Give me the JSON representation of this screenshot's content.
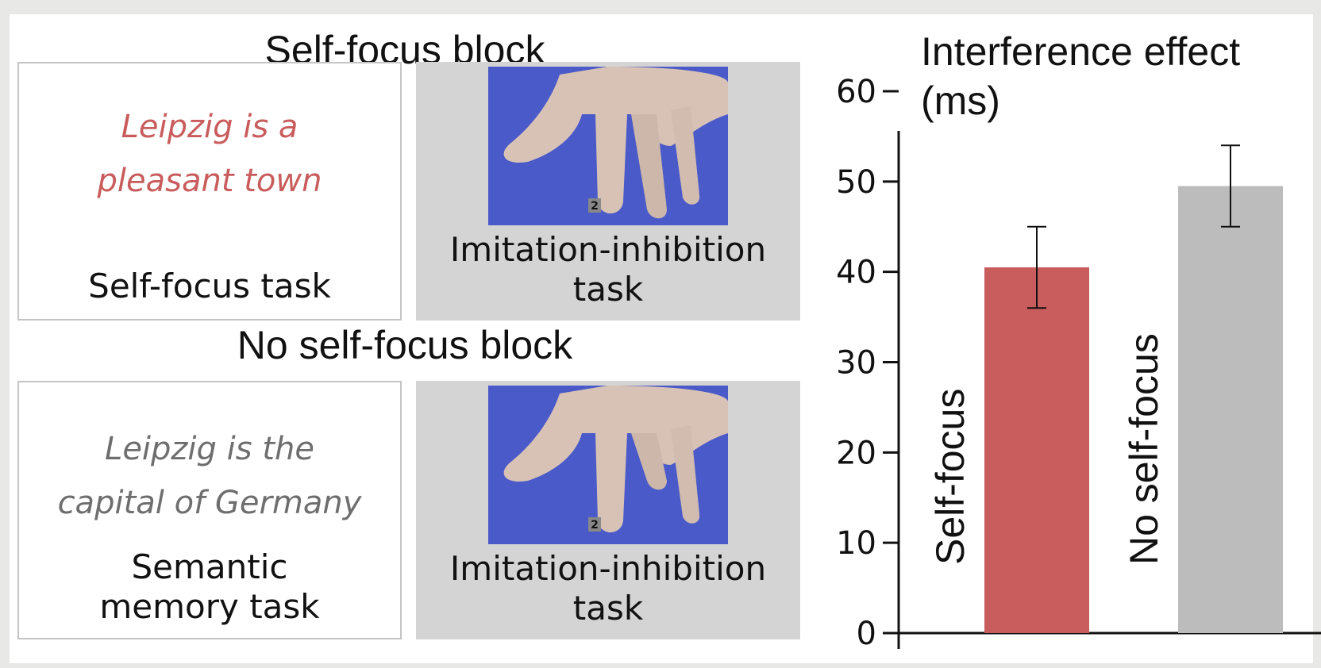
{
  "left_panel": {
    "self_focus_block": {
      "title": "Self-focus block",
      "sentence_line1": "Leipzig is a",
      "sentence_line2": "pleasant town",
      "task_label": "Self-focus task",
      "image_label_line1": "Imitation-inhibition",
      "image_label_line2": "task",
      "finger_number": "2"
    },
    "no_self_focus_block": {
      "title": "No self-focus block",
      "sentence_line1": "Leipzig is the",
      "sentence_line2": "capital of Germany",
      "task_label_line1": "Semantic",
      "task_label_line2": "memory task",
      "image_label_line1": "Imitation-inhibition",
      "image_label_line2": "task",
      "finger_number": "2"
    }
  },
  "colors": {
    "self_focus": "#c95c5c",
    "no_self_focus": "#bcbcbc",
    "sentence_red": "#c95c5c",
    "sentence_grey": "#6e6e6e",
    "photo_blue": "#4a5ac8"
  },
  "chart_data": {
    "type": "bar",
    "title_line1": "Interference effect",
    "title_line2": "(ms)",
    "categories": [
      "Self-focus",
      "No self-focus"
    ],
    "values": [
      40.5,
      49.5
    ],
    "error_low": [
      36,
      45
    ],
    "error_high": [
      45,
      54
    ],
    "ylim": [
      0,
      60
    ],
    "yticks": [
      0,
      10,
      20,
      30,
      40,
      50,
      60
    ],
    "grid": false
  }
}
